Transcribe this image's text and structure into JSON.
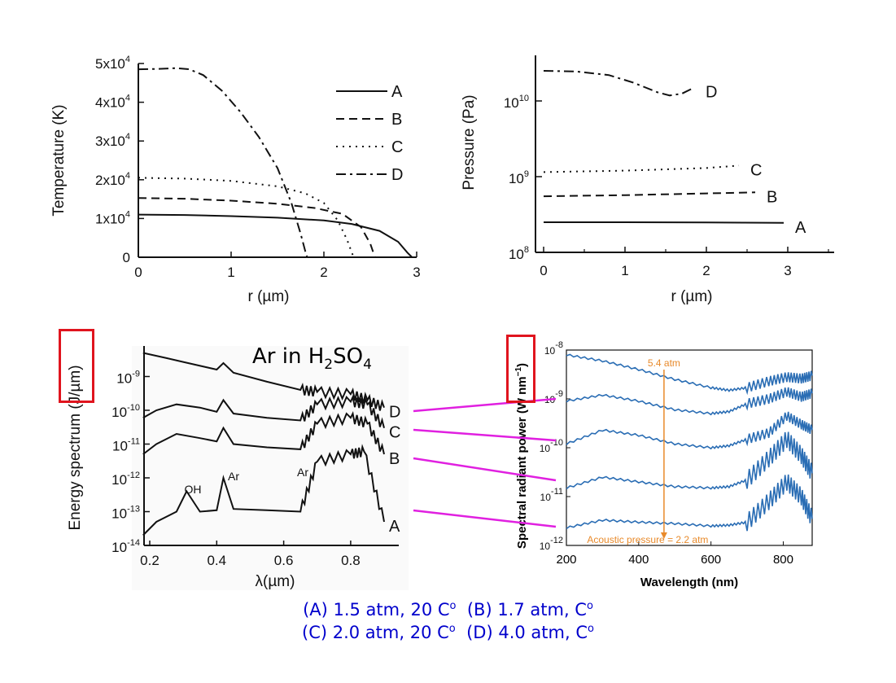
{
  "chart_data": [
    {
      "type": "line",
      "ylabel": "Temperature (K)",
      "xlabel": "r (µm)",
      "xlim": [
        0,
        3
      ],
      "ylim": [
        0,
        50000
      ],
      "xticks": [
        "0",
        "1",
        "2",
        "3"
      ],
      "yticks": [
        "0",
        "1x10^4",
        "2x10^4",
        "3x10^4",
        "4x10^4",
        "5x10^4"
      ],
      "legend_position": "top-right",
      "series": [
        {
          "name": "A",
          "style": "solid",
          "x": [
            0,
            0.5,
            1.0,
            1.5,
            2.0,
            2.3,
            2.6,
            2.8,
            2.9,
            2.95
          ],
          "y": [
            11000,
            10900,
            10600,
            10200,
            9500,
            8600,
            6800,
            4000,
            1200,
            0
          ]
        },
        {
          "name": "B",
          "style": "dashed",
          "x": [
            0,
            0.5,
            1.0,
            1.5,
            1.9,
            2.2,
            2.4,
            2.5,
            2.55
          ],
          "y": [
            15300,
            15100,
            14600,
            13800,
            12700,
            11200,
            7800,
            3500,
            0
          ]
        },
        {
          "name": "C",
          "style": "dotted",
          "x": [
            0,
            0.5,
            1.0,
            1.5,
            1.8,
            2.0,
            2.15,
            2.25,
            2.32
          ],
          "y": [
            20500,
            20300,
            19700,
            18300,
            16500,
            14000,
            9500,
            4500,
            0
          ]
        },
        {
          "name": "D",
          "style": "dashdot",
          "x": [
            0,
            0.2,
            0.4,
            0.55,
            0.7,
            0.9,
            1.1,
            1.3,
            1.5,
            1.65,
            1.75,
            1.8,
            1.82
          ],
          "y": [
            48500,
            48600,
            48800,
            48500,
            47000,
            43000,
            37500,
            31000,
            23000,
            14000,
            6000,
            1500,
            0
          ]
        }
      ]
    },
    {
      "type": "line",
      "ylabel": "Pressure (Pa)",
      "xlabel": "r (µm)",
      "yscale": "log",
      "xlim": [
        0,
        3.5
      ],
      "ylim": [
        100000000,
        50000000000
      ],
      "xticks": [
        "0",
        "1",
        "2",
        "3"
      ],
      "yticks": [
        "10^8",
        "10^9",
        "10^10"
      ],
      "series": [
        {
          "name": "A",
          "style": "solid",
          "x": [
            0,
            1,
            2,
            2.95
          ],
          "y": [
            250000000,
            250000000,
            248000000,
            245000000
          ]
        },
        {
          "name": "B",
          "style": "dashed",
          "x": [
            0,
            1,
            2,
            2.6
          ],
          "y": [
            550000000,
            570000000,
            600000000,
            620000000
          ]
        },
        {
          "name": "C",
          "style": "dotted",
          "x": [
            0,
            1,
            2,
            2.4
          ],
          "y": [
            1150000000,
            1200000000,
            1300000000,
            1400000000
          ]
        },
        {
          "name": "D",
          "style": "dashdot",
          "x": [
            0,
            0.4,
            0.8,
            1.1,
            1.4,
            1.55,
            1.7,
            1.85
          ],
          "y": [
            25000000000,
            24500000000,
            22000000000,
            17500000000,
            13000000000,
            11800000000,
            12500000000,
            15000000000
          ]
        }
      ]
    },
    {
      "type": "line",
      "title": "Ar in H2SO4",
      "title_parts": {
        "a": "Ar in H",
        "b": "2",
        "c": "SO",
        "d": "4"
      },
      "ylabel": "Energy spectrum (J/µm)",
      "xlabel": "λ(µm)",
      "yscale": "log",
      "xlim": [
        0.18,
        0.95
      ],
      "ylim": [
        1e-14,
        1e-08
      ],
      "xticks": [
        "0.2",
        "0.4",
        "0.6",
        "0.8"
      ],
      "yticks": [
        "10^-14",
        "10^-13",
        "10^-12",
        "10^-11",
        "10^-10",
        "10^-9"
      ],
      "annotations": [
        "OH",
        "Ar",
        "Ar"
      ],
      "series": [
        {
          "name": "D",
          "x": [
            0.18,
            0.25,
            0.3,
            0.4,
            0.42,
            0.45,
            0.55,
            0.65,
            0.7,
            0.8,
            0.85,
            0.9
          ],
          "y": [
            5e-09,
            3.5e-09,
            2.7e-09,
            1.6e-09,
            2.5e-09,
            1.3e-09,
            7e-10,
            4e-10,
            3.5e-10,
            3e-10,
            2e-10,
            1.2e-10
          ]
        },
        {
          "name": "C",
          "x": [
            0.18,
            0.22,
            0.28,
            0.35,
            0.4,
            0.42,
            0.45,
            0.55,
            0.65,
            0.7,
            0.8,
            0.85,
            0.9
          ],
          "y": [
            6e-11,
            1e-10,
            1.5e-10,
            1.2e-10,
            9e-11,
            2e-10,
            8e-11,
            6e-11,
            5e-11,
            1.5e-10,
            1.8e-10,
            1.5e-10,
            3e-11
          ]
        },
        {
          "name": "B",
          "x": [
            0.18,
            0.22,
            0.28,
            0.35,
            0.4,
            0.42,
            0.45,
            0.55,
            0.65,
            0.7,
            0.8,
            0.85,
            0.9
          ],
          "y": [
            5e-12,
            1e-11,
            2e-11,
            1.5e-11,
            1.2e-11,
            3e-11,
            1e-11,
            8e-12,
            7e-12,
            4e-11,
            6e-11,
            4e-11,
            5e-12
          ]
        },
        {
          "name": "A",
          "x": [
            0.18,
            0.22,
            0.28,
            0.31,
            0.35,
            0.4,
            0.42,
            0.45,
            0.55,
            0.65,
            0.7,
            0.8,
            0.84,
            0.9
          ],
          "y": [
            2e-14,
            5e-14,
            1e-13,
            4e-13,
            1e-13,
            1.1e-13,
            1e-12,
            1.2e-13,
            1.1e-13,
            1e-13,
            3e-12,
            5e-12,
            6e-12,
            5e-14
          ]
        }
      ]
    },
    {
      "type": "line",
      "ylabel": "Spectral radiant power (W nm-1)",
      "ylabel_parts": {
        "a": "Spectral radiant power ",
        "b": "(W nm",
        "c": "−1",
        "d": ")"
      },
      "xlabel": "Wavelength (nm)",
      "yscale": "log",
      "xlim": [
        200,
        880
      ],
      "ylim": [
        1e-12,
        1e-08
      ],
      "xticks": [
        "200",
        "400",
        "600",
        "800"
      ],
      "yticks": [
        "10^-12",
        "10^-11",
        "10^-10",
        "10^-9",
        "10^-8"
      ],
      "annotations": [
        "5.4 atm",
        "Acoustic pressure = 2.2 atm"
      ],
      "series": [
        {
          "x": [
            200,
            300,
            400,
            500,
            600,
            650,
            700,
            760,
            810,
            850,
            880
          ],
          "y": [
            8e-09,
            6e-09,
            4e-09,
            2.5e-09,
            1.7e-09,
            1.5e-09,
            1.7e-09,
            2.3e-09,
            2.8e-09,
            2.6e-09,
            3e-09
          ]
        },
        {
          "x": [
            200,
            300,
            400,
            500,
            600,
            650,
            700,
            760,
            810,
            850,
            880
          ],
          "y": [
            9e-10,
            1.2e-09,
            9e-10,
            6e-10,
            5e-10,
            5.5e-10,
            8e-10,
            1e-09,
            1.4e-09,
            1.1e-09,
            1.3e-09
          ]
        },
        {
          "x": [
            200,
            300,
            400,
            500,
            600,
            650,
            700,
            760,
            810,
            850,
            880
          ],
          "y": [
            1.2e-10,
            2.3e-10,
            1.8e-10,
            1.2e-10,
            1e-10,
            1.1e-10,
            1.5e-10,
            2e-10,
            4.5e-10,
            3e-10,
            2.3e-10
          ]
        },
        {
          "x": [
            200,
            300,
            400,
            500,
            600,
            650,
            700,
            760,
            810,
            850,
            880
          ],
          "y": [
            1.5e-11,
            2.5e-11,
            2e-11,
            1.6e-11,
            1.5e-11,
            1.6e-11,
            2.2e-11,
            6e-11,
            1.5e-10,
            7e-11,
            3e-11
          ]
        },
        {
          "x": [
            200,
            300,
            400,
            500,
            600,
            650,
            700,
            760,
            810,
            850,
            880
          ],
          "y": [
            2.3e-12,
            3.3e-12,
            3e-12,
            2.8e-12,
            2.5e-12,
            2.6e-12,
            3e-12,
            8e-12,
            2e-11,
            1e-11,
            3.5e-12
          ]
        }
      ]
    }
  ],
  "caption": {
    "line1": {
      "p1": "(A) 1.5 atm, 20 C",
      "p2": "o",
      "p3": "  (B) 1.7 atm, C",
      "p4": "o"
    },
    "line2": {
      "p1": "(C) 2.0 atm, 20 C",
      "p2": "o",
      "p3": "  (D) 4.0 atm, C",
      "p4": "o"
    }
  },
  "colors": {
    "highlight": "#e0141e",
    "connector": "#e020e0",
    "spectrum": "#2a6db4",
    "annotation": "#e88a2b",
    "caption": "#0000cc"
  }
}
